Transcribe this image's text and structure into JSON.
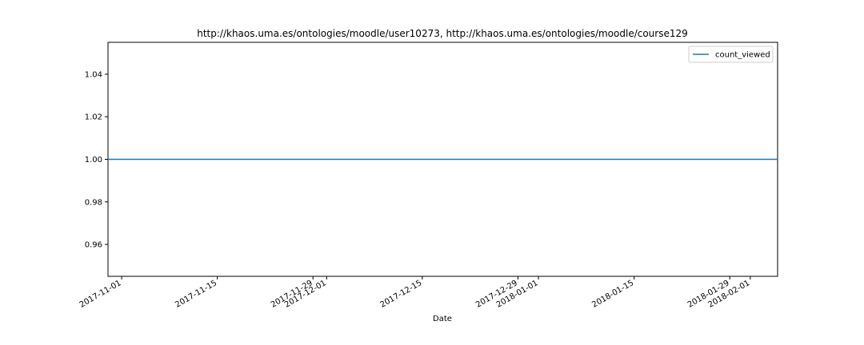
{
  "chart_data": {
    "type": "line",
    "title": "http://khaos.uma.es/ontologies/moodle/user10273, http://khaos.uma.es/ontologies/moodle/course129",
    "xlabel": "Date",
    "ylabel": "",
    "xlim": [
      "2017-10-30",
      "2018-02-05"
    ],
    "ylim": [
      0.945,
      1.055
    ],
    "x_ticks": [
      "2017-11-01",
      "2017-11-15",
      "2017-11-29",
      "2017-12-01",
      "2017-12-15",
      "2017-12-29",
      "2018-01-01",
      "2018-01-15",
      "2018-01-29",
      "2018-02-01"
    ],
    "y_ticks": [
      "0.96",
      "0.98",
      "1.00",
      "1.02",
      "1.04"
    ],
    "grid": false,
    "legend_position": "upper right",
    "series": [
      {
        "name": "count_viewed",
        "color": "#1f77b4",
        "x": [
          "2017-10-30",
          "2018-02-05"
        ],
        "y": [
          1.0,
          1.0
        ]
      }
    ]
  }
}
